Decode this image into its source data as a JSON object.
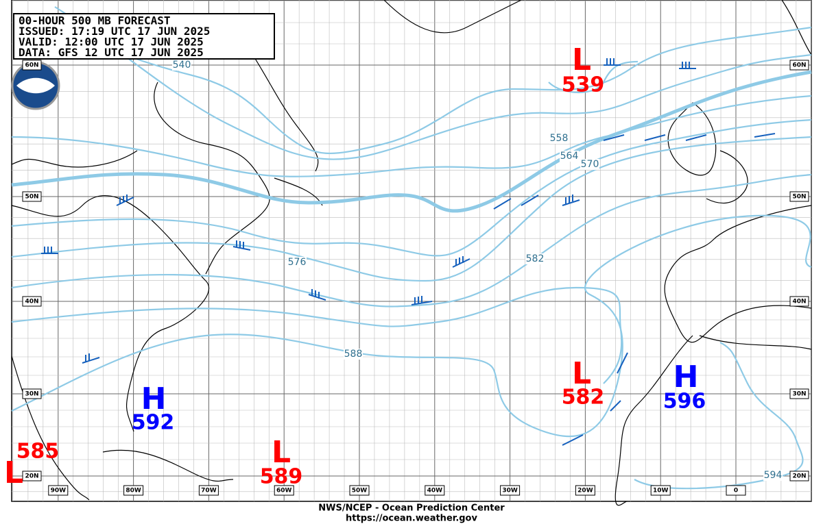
{
  "header_lines": [
    "00-HOUR 500 MB FORECAST",
    "ISSUED:  17:19 UTC 17 JUN 2025",
    "VALID:   12:00 UTC 17 JUN 2025",
    "DATA:   GFS 12 UTC 17 JUN 2025"
  ],
  "centers": [
    {
      "symbol": "L",
      "value": 539
    },
    {
      "symbol": "L",
      "value": 582
    },
    {
      "symbol": "H",
      "value": 596
    },
    {
      "symbol": "H",
      "value": 592
    },
    {
      "symbol": "L",
      "value": 589
    },
    {
      "symbol": "L",
      "value": 585
    }
  ],
  "contour_labels": [
    "540",
    "558",
    "564",
    "570",
    "576",
    "582",
    "588",
    "594"
  ],
  "lat_labels": [
    "60N",
    "50N",
    "40N",
    "30N",
    "20N"
  ],
  "lon_labels": [
    "90W",
    "80W",
    "70W",
    "60W",
    "50W",
    "40W",
    "30W",
    "20W",
    "10W",
    "0"
  ],
  "footer_lines": [
    "NWS/NCEP - Ocean Prediction Center",
    "https://ocean.weather.gov"
  ]
}
